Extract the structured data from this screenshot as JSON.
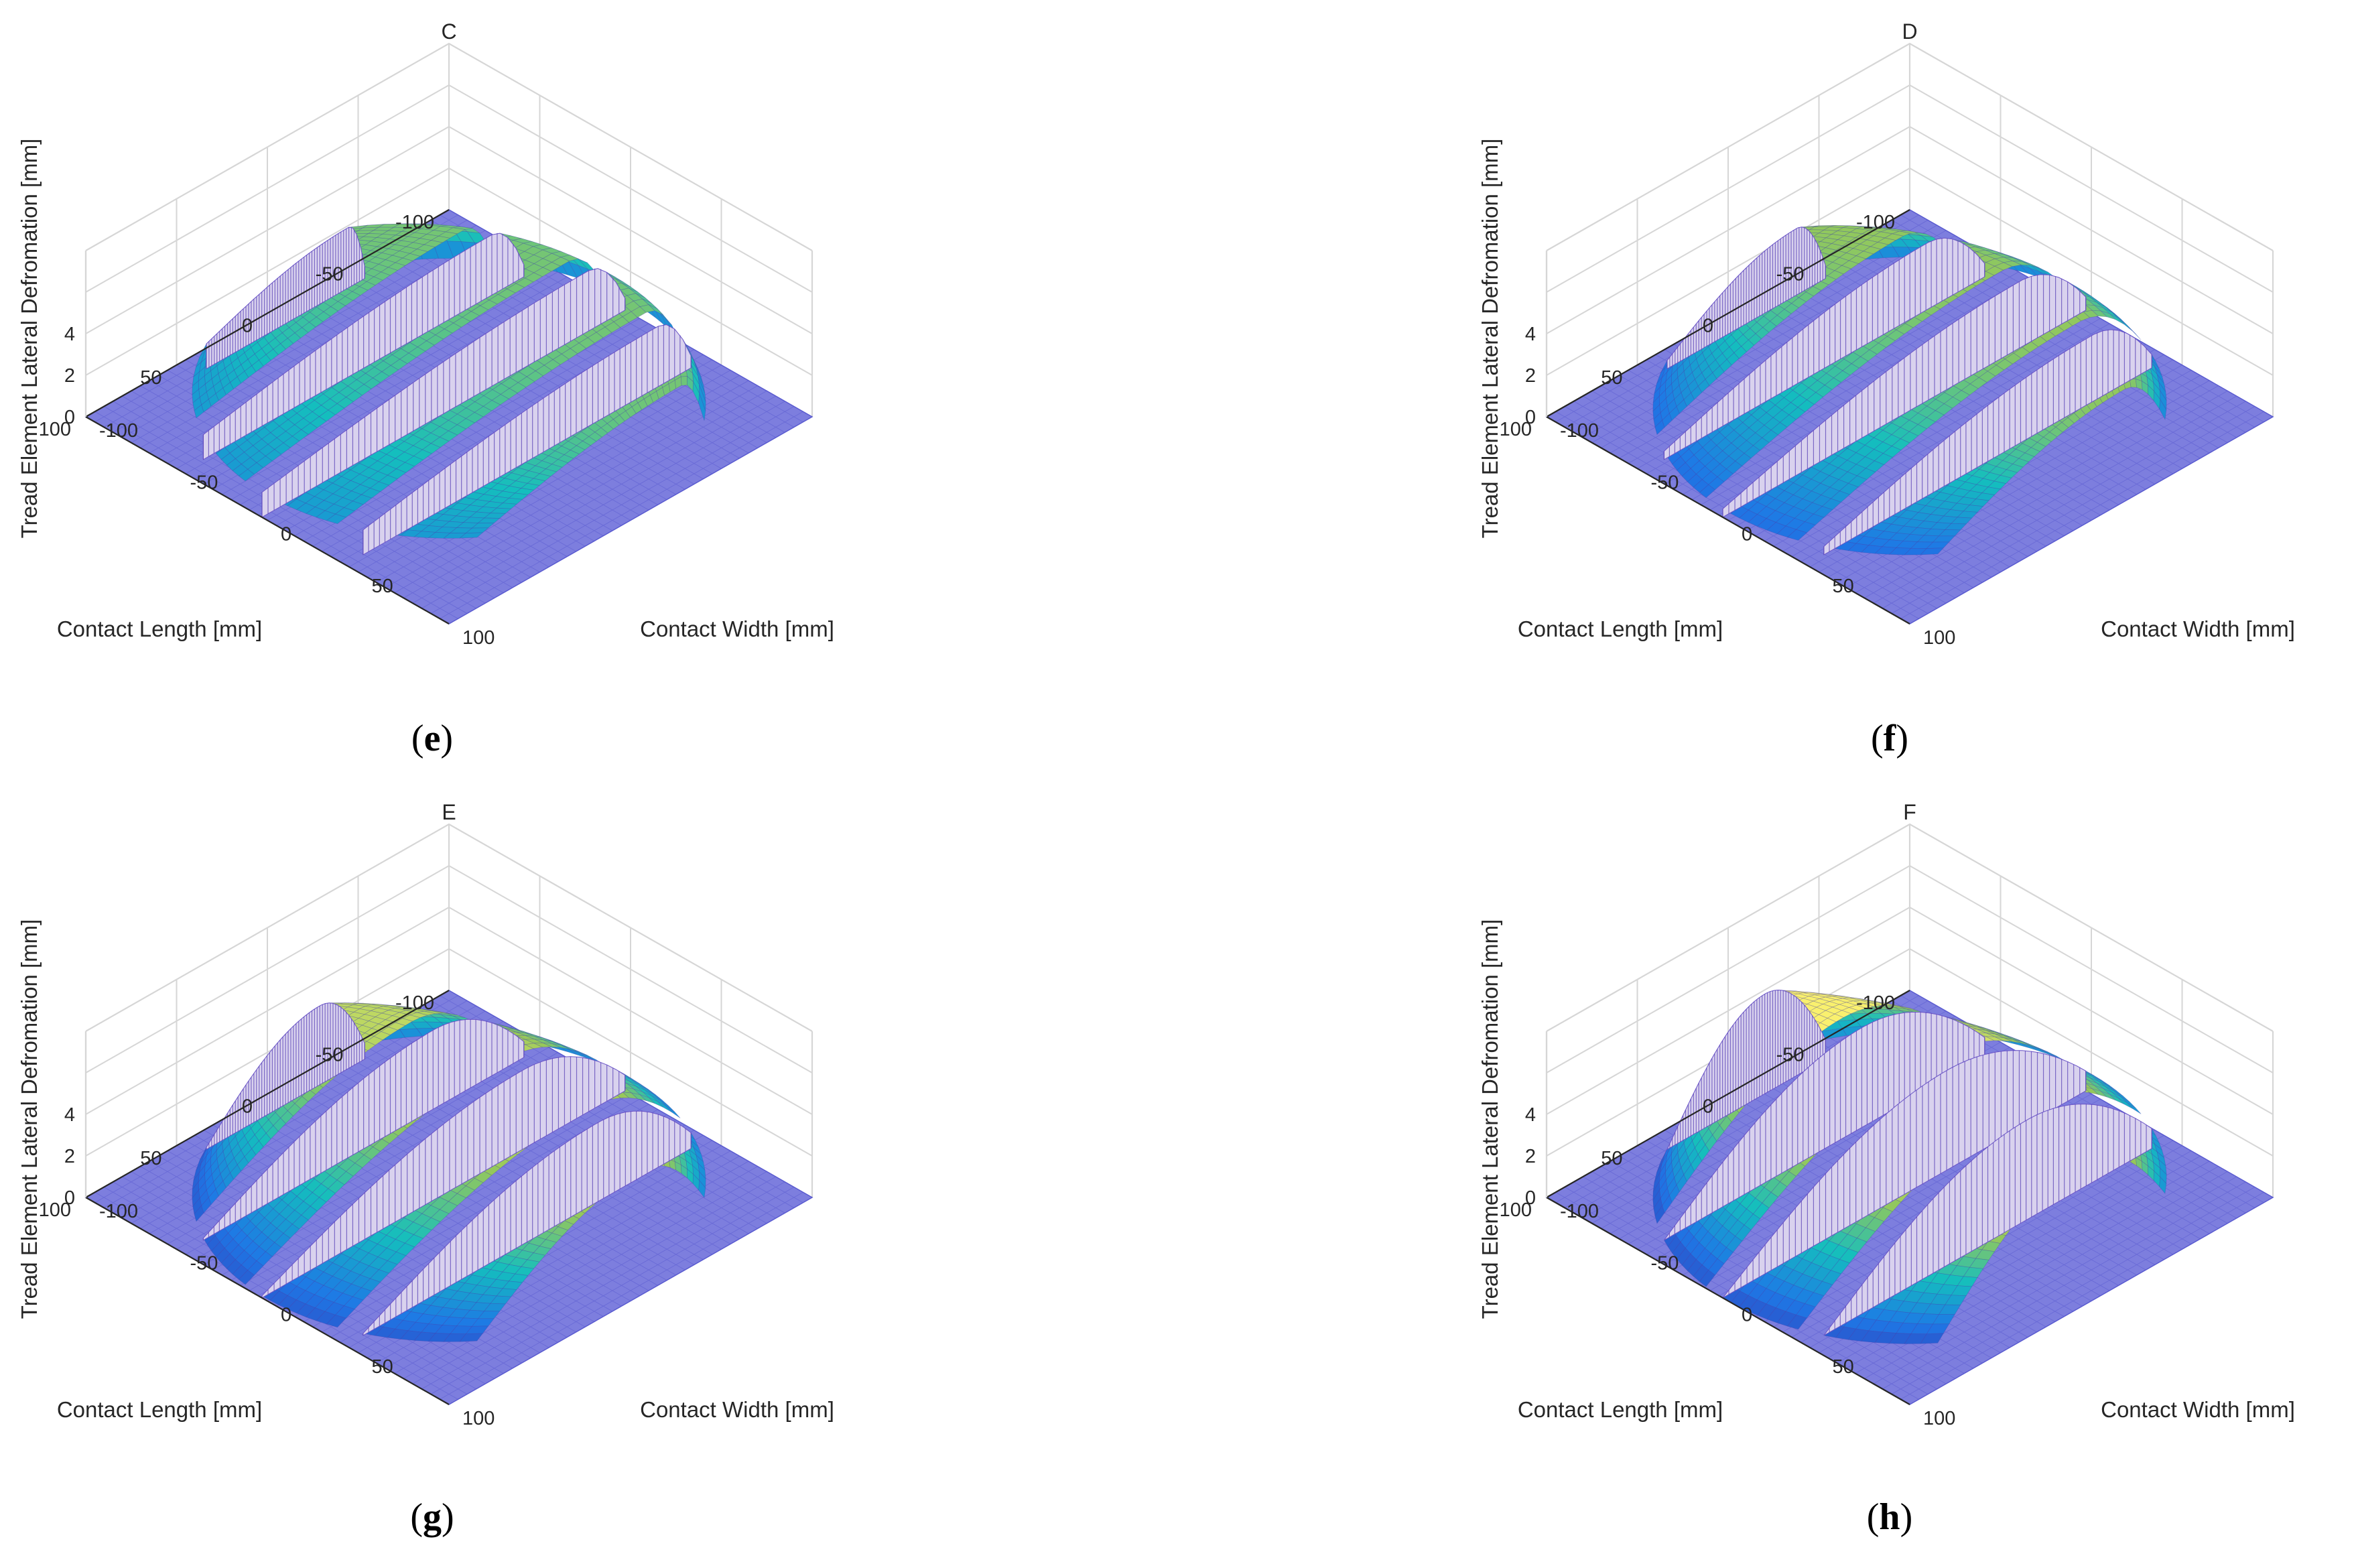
{
  "figure": {
    "colors": {
      "plane": "#7d7ede",
      "planeLine": "#5a5bd0",
      "grid": "#d6d6d6",
      "axis": "#262626"
    },
    "axis_labels": {
      "x": "Contact Length [mm]",
      "y": "Contact Width [mm]",
      "z": "Tread Element Lateral Defromation [mm]"
    }
  },
  "chart_data": [
    {
      "type": "surface",
      "panel_label": "e",
      "title": "C",
      "xlabel": "Contact Length [mm]",
      "ylabel": "Contact Width [mm]",
      "zlabel": "Tread Element Lateral Defromation [mm]",
      "xlim": [
        -100,
        100
      ],
      "ylim": [
        -100,
        100
      ],
      "zlim": [
        0,
        8
      ],
      "xticks": [
        "-100",
        "-50",
        "0",
        "50",
        "100"
      ],
      "yticks": [
        "-100",
        "-50",
        "0",
        "50",
        "100"
      ],
      "zticks": [
        "0",
        "2",
        "4"
      ],
      "contact_radius": 100,
      "ribs": [
        [
          -90,
          -57
        ],
        [
          -47,
          -13
        ],
        [
          -3,
          33
        ],
        [
          43,
          78
        ]
      ],
      "leading_deformation": 1.2,
      "max_deformation": 2.9,
      "peak_position": 0.9
    },
    {
      "type": "surface",
      "panel_label": "f",
      "title": "D",
      "xlabel": "Contact Length [mm]",
      "ylabel": "Contact Width [mm]",
      "zlabel": "Tread Element Lateral Defromation [mm]",
      "xlim": [
        -100,
        100
      ],
      "ylim": [
        -100,
        100
      ],
      "zlim": [
        0,
        8
      ],
      "xticks": [
        "-100",
        "-50",
        "0",
        "50",
        "100"
      ],
      "yticks": [
        "-100",
        "-50",
        "0",
        "50",
        "100"
      ],
      "zticks": [
        "0",
        "2",
        "4"
      ],
      "contact_radius": 100,
      "ribs": [
        [
          -90,
          -57
        ],
        [
          -47,
          -13
        ],
        [
          -3,
          33
        ],
        [
          43,
          78
        ]
      ],
      "leading_deformation": 0.4,
      "max_deformation": 3.2,
      "peak_position": 0.82
    },
    {
      "type": "surface",
      "panel_label": "g",
      "title": "E",
      "xlabel": "Contact Length [mm]",
      "ylabel": "Contact Width [mm]",
      "zlabel": "Tread Element Lateral Defromation [mm]",
      "xlim": [
        -100,
        100
      ],
      "ylim": [
        -100,
        100
      ],
      "zlim": [
        0,
        8
      ],
      "xticks": [
        "-100",
        "-50",
        "0",
        "50",
        "100"
      ],
      "yticks": [
        "-100",
        "-50",
        "0",
        "50",
        "100"
      ],
      "zticks": [
        "0",
        "2",
        "4"
      ],
      "contact_radius": 100,
      "ribs": [
        [
          -90,
          -57
        ],
        [
          -47,
          -13
        ],
        [
          -3,
          33
        ],
        [
          43,
          78
        ]
      ],
      "leading_deformation": 0.1,
      "max_deformation": 3.8,
      "peak_position": 0.72
    },
    {
      "type": "surface",
      "panel_label": "h",
      "title": "F",
      "xlabel": "Contact Length [mm]",
      "ylabel": "Contact Width [mm]",
      "zlabel": "Tread Element Lateral Defromation [mm]",
      "xlim": [
        -100,
        100
      ],
      "ylim": [
        -100,
        100
      ],
      "zlim": [
        0,
        8
      ],
      "xticks": [
        "-100",
        "-50",
        "0",
        "50",
        "100"
      ],
      "yticks": [
        "-100",
        "-50",
        "0",
        "50",
        "100"
      ],
      "zticks": [
        "0",
        "2",
        "4"
      ],
      "contact_radius": 100,
      "ribs": [
        [
          -90,
          -57
        ],
        [
          -47,
          -13
        ],
        [
          -3,
          33
        ],
        [
          43,
          78
        ]
      ],
      "leading_deformation": 0.0,
      "max_deformation": 4.8,
      "peak_position": 0.62
    }
  ]
}
